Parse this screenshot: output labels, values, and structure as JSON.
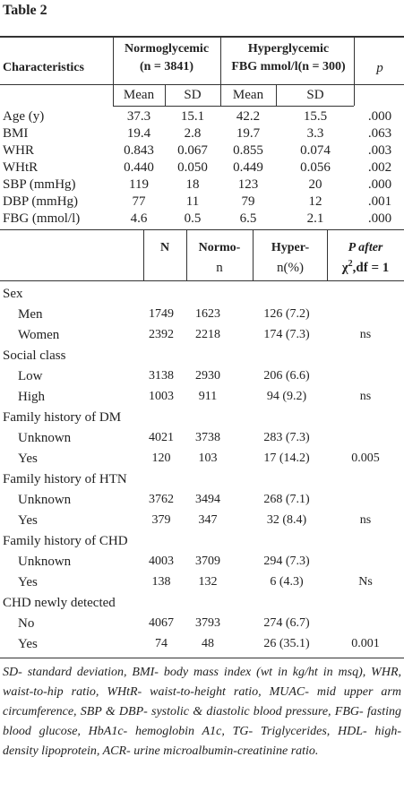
{
  "title": "Table 2",
  "table1": {
    "header": {
      "col0": "Characteristics",
      "group1": [
        "Normoglycemic",
        "(n = 3841)"
      ],
      "group2": [
        "Hyperglycemic",
        "FBG mmol/l(n = 300)"
      ],
      "p": "p"
    },
    "subheader": [
      "Mean",
      "SD",
      "Mean",
      "SD"
    ],
    "rows": [
      {
        "label": "Age (y)",
        "values": [
          "37.3",
          "15.1",
          "42.2",
          "15.5",
          ".000"
        ]
      },
      {
        "label": "BMI",
        "values": [
          "19.4",
          "2.8",
          "19.7",
          "3.3",
          ".063"
        ]
      },
      {
        "label": "WHR",
        "values": [
          "0.843",
          "0.067",
          "0.855",
          "0.074",
          ".003"
        ]
      },
      {
        "label": "WHtR",
        "values": [
          "0.440",
          "0.050",
          "0.449",
          "0.056",
          ".002"
        ]
      },
      {
        "label": "SBP (mmHg)",
        "values": [
          "119",
          "18",
          "123",
          "20",
          ".000"
        ]
      },
      {
        "label": "DBP (mmHg)",
        "values": [
          "77",
          "11",
          "79",
          "12",
          ".001"
        ]
      },
      {
        "label": "FBG (mmol/l)",
        "values": [
          "4.6",
          "0.5",
          "6.5",
          "2.1",
          ".000"
        ]
      }
    ]
  },
  "table2": {
    "header": {
      "n": "N",
      "normo": [
        "Normo-",
        "n"
      ],
      "hyper": [
        "Hyper-",
        "n(%)"
      ],
      "p": {
        "line1": "P after",
        "symbol": "χ",
        "sup": "2",
        "rest": ",df = 1"
      }
    },
    "groups": [
      {
        "label": "Sex",
        "rows": [
          {
            "label": "Men",
            "values": [
              "1749",
              "1623",
              "126 (7.2)"
            ]
          },
          {
            "label": "Women",
            "values": [
              "2392",
              "2218",
              "174 (7.3)",
              "ns"
            ]
          }
        ]
      },
      {
        "label": "Social class",
        "rows": [
          {
            "label": "Low",
            "values": [
              "3138",
              "2930",
              "206 (6.6)"
            ]
          },
          {
            "label": "High",
            "values": [
              "1003",
              "911",
              "94 (9.2)",
              "ns"
            ]
          }
        ]
      },
      {
        "label": "Family history of DM",
        "rows": [
          {
            "label": "Unknown",
            "values": [
              "4021",
              "3738",
              "283 (7.3)"
            ]
          },
          {
            "label": "Yes",
            "values": [
              "120",
              "103",
              "17 (14.2)",
              "0.005"
            ]
          }
        ]
      },
      {
        "label": "Family history of HTN",
        "rows": [
          {
            "label": "Unknown",
            "values": [
              "3762",
              "3494",
              "268 (7.1)"
            ]
          },
          {
            "label": "Yes",
            "values": [
              "379",
              "347",
              "32 (8.4)",
              "ns"
            ]
          }
        ]
      },
      {
        "label": "Family history of CHD",
        "rows": [
          {
            "label": "Unknown",
            "values": [
              "4003",
              "3709",
              "294 (7.3)"
            ]
          },
          {
            "label": "Yes",
            "values": [
              "138",
              "132",
              "6 (4.3)",
              "Ns"
            ]
          }
        ]
      },
      {
        "label": "CHD newly detected",
        "rows": [
          {
            "label": "No",
            "values": [
              "4067",
              "3793",
              "274 (6.7)"
            ]
          },
          {
            "label": "Yes",
            "values": [
              "74",
              "48",
              "26 (35.1)",
              "0.001"
            ]
          }
        ]
      }
    ]
  },
  "footnote": "SD- standard deviation, BMI- body mass index (wt in kg/ht in msq), WHR, waist-to-hip ratio, WHtR- waist-to-height ratio, MUAC- mid upper arm circumference, SBP & DBP- systolic & diastolic blood pressure, FBG- fasting blood glucose, HbA1c- hemoglobin A1c, TG- Triglycerides, HDL- high- density lipoprotein, ACR- urine microalbumin-creatinine ratio."
}
